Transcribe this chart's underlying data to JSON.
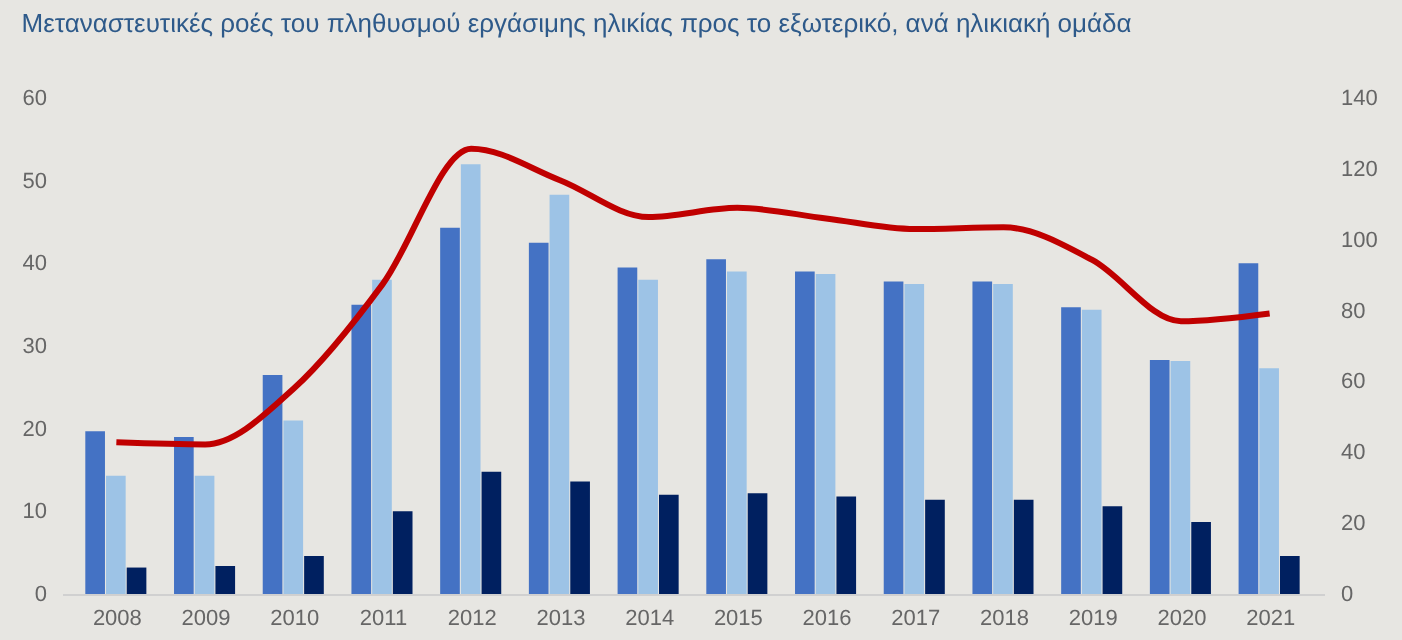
{
  "chart_data": {
    "type": "bar",
    "title": "Μεταναστευτικές ροές του πληθυσμού εργάσιμης ηλικίας προς το εξωτερικό, ανά ηλικιακή ομάδα",
    "categories": [
      "2008",
      "2009",
      "2010",
      "2011",
      "2012",
      "2013",
      "2014",
      "2015",
      "2016",
      "2017",
      "2018",
      "2019",
      "2020",
      "2021"
    ],
    "series": [
      {
        "color": "#4472c4",
        "values": [
          19.7,
          19,
          26.5,
          35,
          44.3,
          42.5,
          39.5,
          40.5,
          39,
          37.8,
          37.8,
          34.7,
          28.3,
          40
        ]
      },
      {
        "color": "#9dc3e6",
        "values": [
          14.3,
          14.3,
          21,
          38,
          52,
          48.3,
          38,
          39,
          38.7,
          37.5,
          37.5,
          34.4,
          28.2,
          27.3
        ]
      },
      {
        "color": "#002060",
        "values": [
          3.2,
          3.4,
          4.6,
          10,
          14.8,
          13.6,
          12,
          12.2,
          11.8,
          11.4,
          11.4,
          10.6,
          8.7,
          4.6
        ]
      },
      {
        "type": "line",
        "axis": "y2",
        "color": "#c00000",
        "values": [
          42.8,
          42.2,
          58,
          87.4,
          125.7,
          116.8,
          106.4,
          109,
          106,
          103,
          103.5,
          94.3,
          77,
          79.2
        ]
      }
    ],
    "ylim": [
      0,
      60
    ],
    "yticks": [
      0,
      10,
      20,
      30,
      40,
      50,
      60
    ],
    "y2lim": [
      0,
      140
    ],
    "y2ticks": [
      0,
      20,
      40,
      60,
      80,
      100,
      120,
      140
    ],
    "grid": false,
    "legend": false
  }
}
